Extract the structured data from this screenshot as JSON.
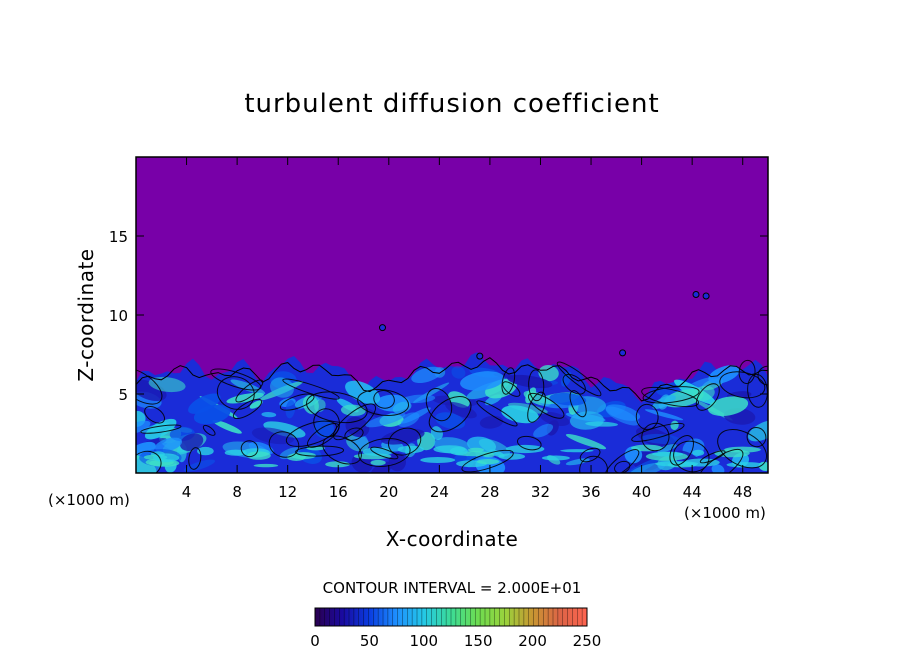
{
  "chart_data": {
    "type": "heatmap",
    "title": "turbulent diffusion coefficient",
    "xlabel": "X-coordinate",
    "ylabel": "Z-coordinate",
    "x_unit": "(×1000 m)",
    "y_unit": "(×1000 m)",
    "xlim": [
      0,
      50
    ],
    "ylim": [
      0,
      20
    ],
    "x_ticks": [
      4,
      8,
      12,
      16,
      20,
      24,
      28,
      32,
      36,
      40,
      44,
      48
    ],
    "y_ticks": [
      5,
      10,
      15
    ],
    "contour_interval_text": "CONTOUR INTERVAL = 2.000E+01",
    "contour_interval": 20,
    "colorbar": {
      "range": [
        0,
        250
      ],
      "ticks": [
        0,
        50,
        100,
        150,
        200,
        250
      ],
      "colors": [
        "#2a0050",
        "#1a0aa0",
        "#0a3ce0",
        "#1e90ff",
        "#24c8e6",
        "#3cdc96",
        "#6edc50",
        "#9ad23c",
        "#c89632",
        "#dc6446",
        "#ff6450"
      ]
    },
    "background_value_color": "#7800a8",
    "turbulent_layer_top_approx": [
      [
        0,
        5.8
      ],
      [
        2,
        6.4
      ],
      [
        4,
        6.8
      ],
      [
        6,
        6.2
      ],
      [
        8,
        6.8
      ],
      [
        10,
        6.2
      ],
      [
        12,
        7.0
      ],
      [
        14,
        6.8
      ],
      [
        16,
        6.6
      ],
      [
        18,
        5.6
      ],
      [
        20,
        5.8
      ],
      [
        22,
        6.6
      ],
      [
        24,
        6.8
      ],
      [
        26,
        7.0
      ],
      [
        28,
        7.2
      ],
      [
        30,
        6.6
      ],
      [
        32,
        7.0
      ],
      [
        34,
        6.6
      ],
      [
        36,
        6.0
      ],
      [
        38,
        5.6
      ],
      [
        40,
        5.0
      ],
      [
        42,
        5.6
      ],
      [
        44,
        6.4
      ],
      [
        46,
        6.6
      ],
      [
        48,
        6.8
      ],
      [
        50,
        6.4
      ]
    ]
  }
}
